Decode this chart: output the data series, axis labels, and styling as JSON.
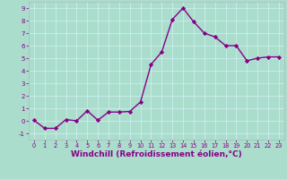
{
  "x": [
    0,
    1,
    2,
    3,
    4,
    5,
    6,
    7,
    8,
    9,
    10,
    11,
    12,
    13,
    14,
    15,
    16,
    17,
    18,
    19,
    20,
    21,
    22,
    23
  ],
  "y": [
    0.05,
    -0.6,
    -0.6,
    0.1,
    0.0,
    0.8,
    0.05,
    0.7,
    0.7,
    0.75,
    1.5,
    4.5,
    5.5,
    8.1,
    9.0,
    7.9,
    7.0,
    6.7,
    6.0,
    6.0,
    4.8,
    5.0,
    5.1,
    5.1
  ],
  "line_color": "#880088",
  "marker": "D",
  "markersize": 2.2,
  "linewidth": 1.0,
  "xlabel": "Windchill (Refroidissement éolien,°C)",
  "xlabel_fontsize": 6.5,
  "bg_color": "#aaddcc",
  "grid_color": "#bbddcc",
  "tick_color": "#880088",
  "label_color": "#880088",
  "xlim": [
    -0.5,
    23.5
  ],
  "ylim": [
    -1.5,
    9.5
  ],
  "yticks": [
    -1,
    0,
    1,
    2,
    3,
    4,
    5,
    6,
    7,
    8,
    9
  ],
  "xticks": [
    0,
    1,
    2,
    3,
    4,
    5,
    6,
    7,
    8,
    9,
    10,
    11,
    12,
    13,
    14,
    15,
    16,
    17,
    18,
    19,
    20,
    21,
    22,
    23
  ]
}
